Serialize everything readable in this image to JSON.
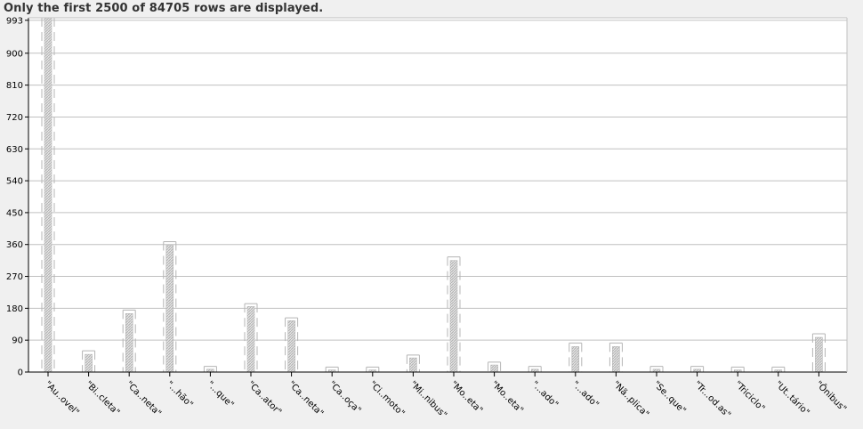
{
  "notice": "Only the first 2500 of 84705 rows are displayed.",
  "colors": {
    "background": "#f0f0f0",
    "plot_background": "#ffffff",
    "grid": "#c0c0c0",
    "bar": "#b0b0b0",
    "whisker": "#b4b4b4"
  },
  "chart_data": {
    "type": "bar",
    "title": "",
    "xlabel": "",
    "ylabel": "",
    "ylim": [
      0,
      1000
    ],
    "yticks": [
      0,
      90,
      180,
      270,
      360,
      450,
      540,
      630,
      720,
      810,
      900,
      993
    ],
    "ytick_labels": [
      "0",
      "90",
      "180",
      "270",
      "360",
      "450",
      "540",
      "630",
      "720",
      "810",
      "900",
      "993"
    ],
    "grid": true,
    "categories": [
      "\"Au..ovel\"",
      "\"Bi..cleta\"",
      "\"Ca..neta\"",
      "\"...hão\"",
      "\"...que\"",
      "\"Ca..ator\"",
      "\"Ca..neta\"",
      "\"Ca..oça\"",
      "\"Ci..moto\"",
      "\"Mi..nibus\"",
      "\"Mo..eta\"",
      "\"Mo..eta\"",
      "\"...ado\"",
      "\"...ado\"",
      "\"Nã..plica\"",
      "\"Se..que\"",
      "\"Tr...od.as\"",
      "\"Triciclo\"",
      "\"Ut..tário\"",
      "\"Ônibus\""
    ],
    "values": [
      1000,
      50,
      165,
      358,
      8,
      185,
      145,
      6,
      6,
      40,
      315,
      20,
      8,
      72,
      72,
      8,
      8,
      6,
      6,
      98
    ],
    "upper": [
      1000,
      60,
      175,
      368,
      16,
      193,
      153,
      14,
      14,
      48,
      325,
      28,
      16,
      82,
      82,
      16,
      16,
      14,
      14,
      108
    ],
    "lower": [
      0,
      0,
      0,
      0,
      0,
      0,
      0,
      0,
      0,
      0,
      0,
      0,
      0,
      0,
      0,
      0,
      0,
      0,
      0,
      0
    ]
  }
}
